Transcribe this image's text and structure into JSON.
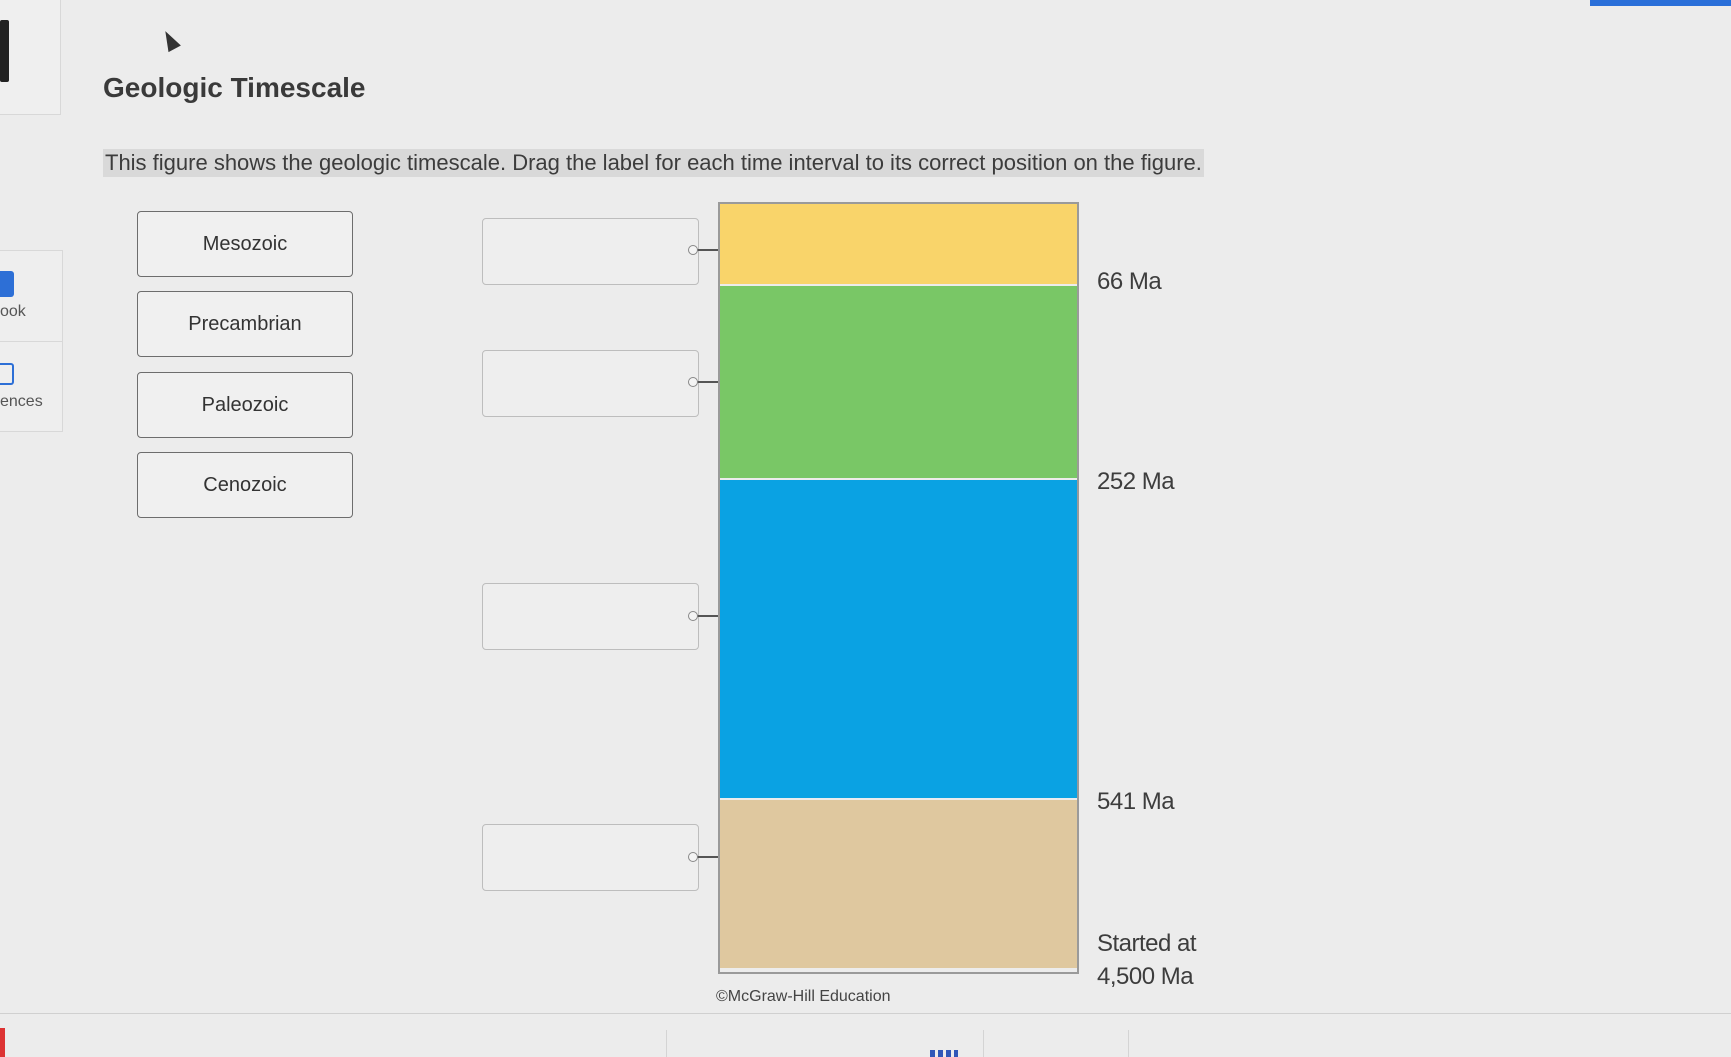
{
  "sidebar": {
    "items": [
      {
        "label": "ook",
        "icon": "book-icon"
      },
      {
        "label": "ences",
        "icon": "references-icon"
      }
    ]
  },
  "question": {
    "title": "Geologic Timescale",
    "instruction": "This figure shows the geologic timescale. Drag the label for each time interval to its correct position on the figure."
  },
  "labels": [
    "Mesozoic",
    "Precambrian",
    "Paleozoic",
    "Cenozoic"
  ],
  "figure": {
    "bands": [
      {
        "color": "#f9d46a"
      },
      {
        "color": "#79c766"
      },
      {
        "color": "#0aa2e3"
      },
      {
        "color": "#dfc89f"
      }
    ],
    "boundaries": [
      "66 Ma",
      "252 Ma",
      "541 Ma"
    ],
    "start_line1": "Started at",
    "start_line2": "4,500 Ma",
    "credit": "©McGraw-Hill Education"
  },
  "colors": {
    "accent": "#2a6fd9"
  }
}
